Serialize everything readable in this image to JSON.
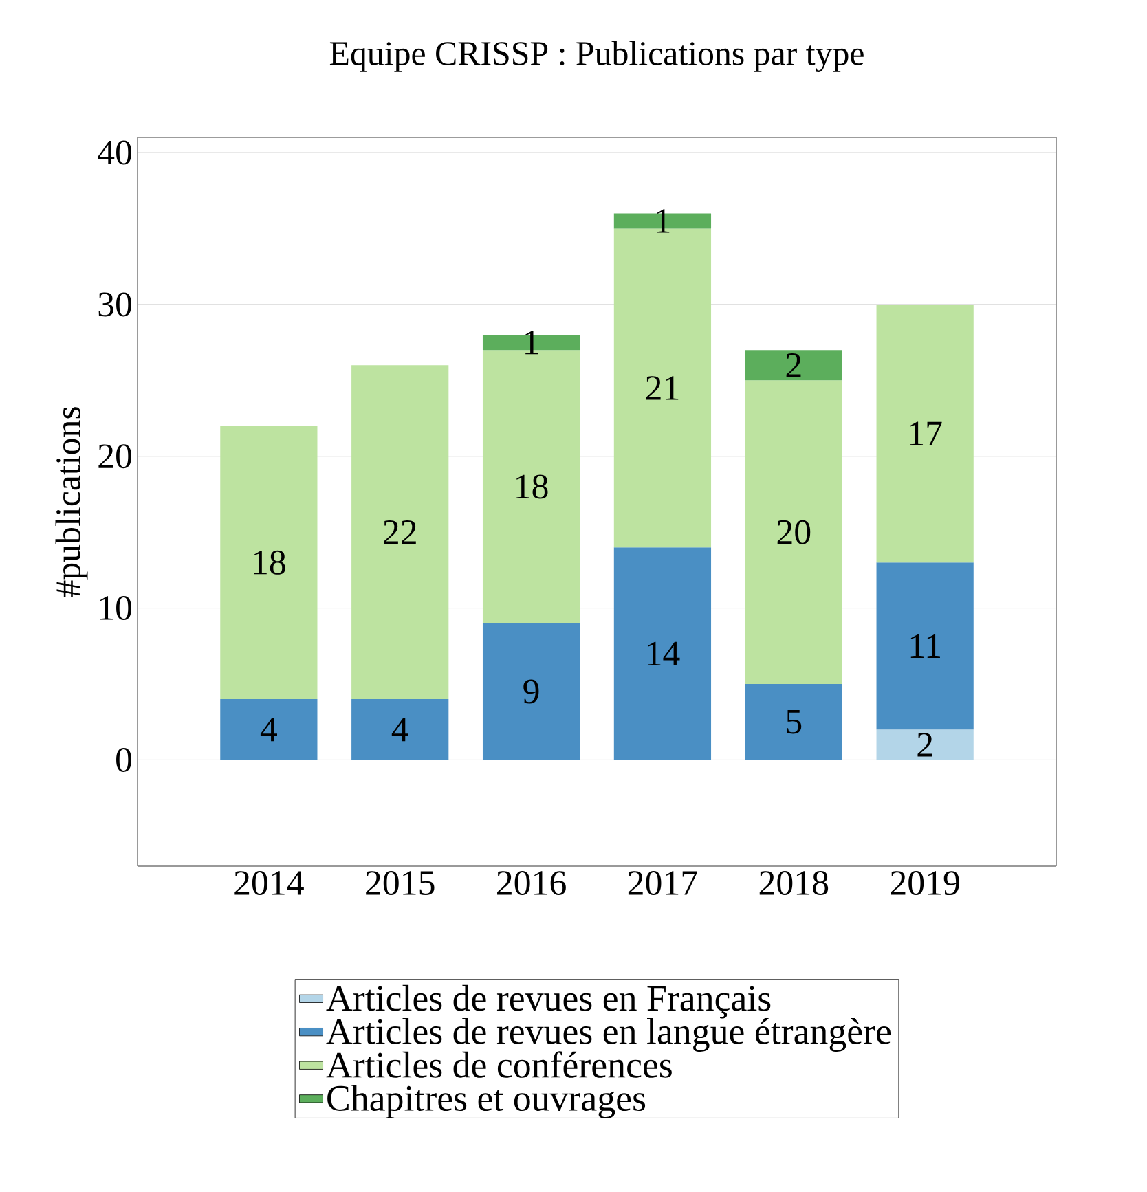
{
  "chart_data": {
    "type": "bar",
    "stacked": true,
    "title": "Equipe CRISSP : Publications par type",
    "ylabel": "#publications",
    "categories": [
      "2014",
      "2015",
      "2016",
      "2017",
      "2018",
      "2019"
    ],
    "series": [
      {
        "name": "Articles de revues en Français",
        "color": "#b3d5e8",
        "values": [
          null,
          null,
          null,
          null,
          null,
          2
        ]
      },
      {
        "name": "Articles de revues en langue étrangère",
        "color": "#4a8fc4",
        "values": [
          4,
          4,
          9,
          14,
          5,
          11
        ]
      },
      {
        "name": "Articles de conférences",
        "color": "#bde3a0",
        "values": [
          18,
          22,
          18,
          21,
          20,
          17
        ]
      },
      {
        "name": "Chapitres et ouvrages",
        "color": "#5cae5c",
        "values": [
          null,
          null,
          1,
          1,
          2,
          null
        ]
      }
    ],
    "ylim": [
      -7,
      41
    ],
    "yticks": [
      0,
      10,
      20,
      30,
      40
    ],
    "grid": "y",
    "legend": "bottom",
    "data_labels": true
  }
}
